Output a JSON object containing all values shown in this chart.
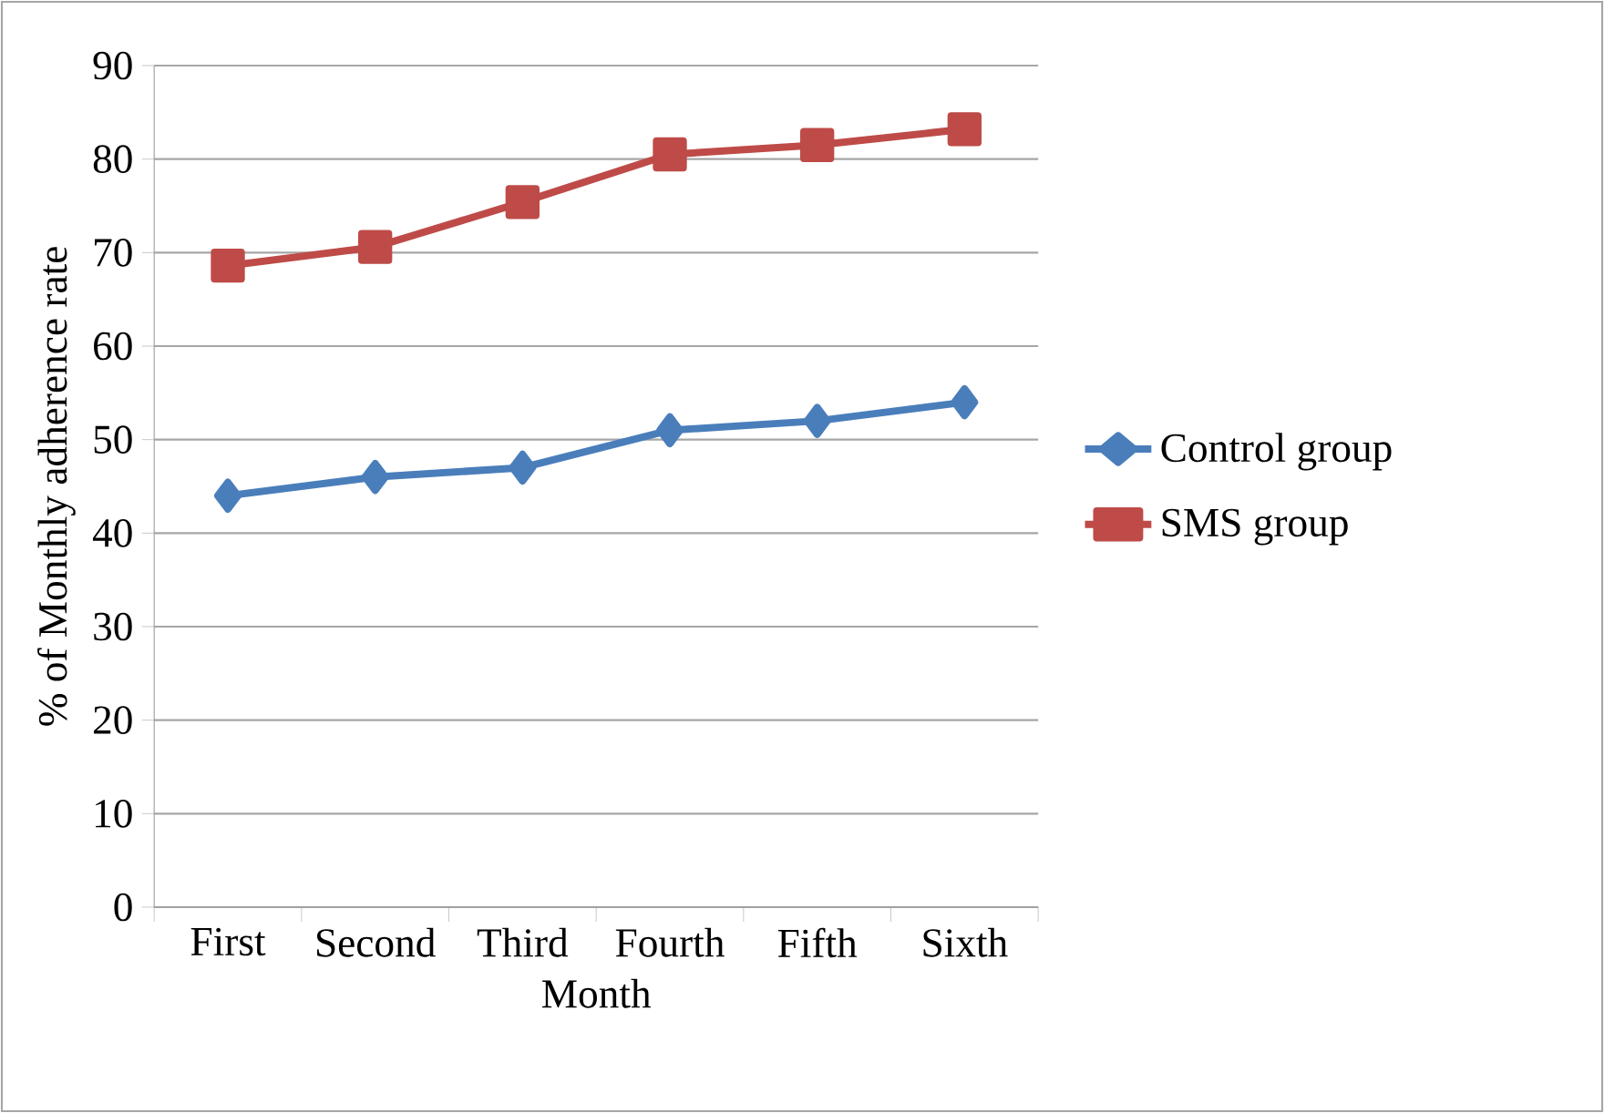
{
  "chart_data": {
    "type": "line",
    "xlabel": "Month",
    "ylabel": "% of Monthly adherence rate",
    "categories": [
      "First",
      "Second",
      "Third",
      "Fourth",
      "Fifth",
      "Sixth"
    ],
    "series": [
      {
        "name": "Control group",
        "color": "#4a7ebb",
        "marker": "diamond",
        "values": [
          44,
          46,
          47,
          51,
          52,
          54
        ]
      },
      {
        "name": "SMS group",
        "color": "#be4b48",
        "marker": "square",
        "values": [
          68.6,
          70.6,
          75.4,
          80.5,
          81.5,
          83.2
        ]
      }
    ],
    "ylim": [
      0,
      90
    ],
    "yticks": [
      0,
      10,
      20,
      30,
      40,
      50,
      60,
      70,
      80,
      90
    ],
    "grid": "y",
    "legend": "right",
    "line_style": "solid"
  }
}
